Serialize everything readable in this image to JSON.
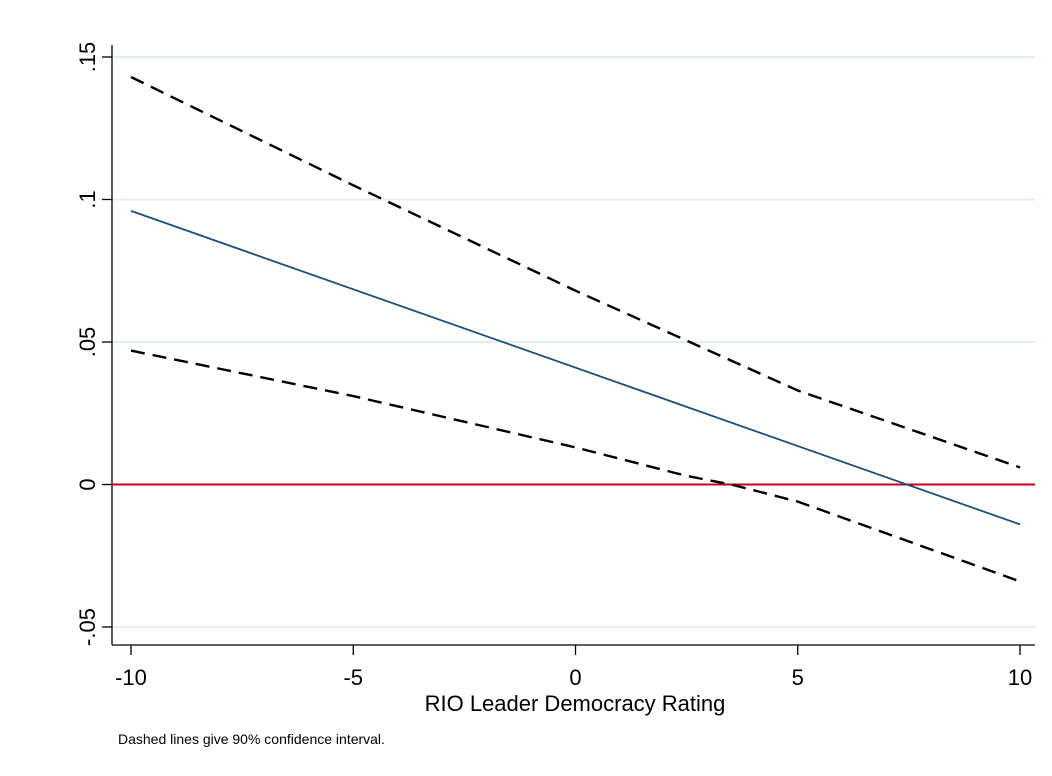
{
  "chart_data": {
    "type": "line",
    "xlabel": "RIO Leader Democracy Rating",
    "ylabel": "",
    "title": "",
    "note": "Dashed lines give 90% confidence interval.",
    "xlim": [
      -10,
      10
    ],
    "ylim": [
      -0.05,
      0.15
    ],
    "x_ticks": [
      -10,
      -5,
      0,
      5,
      10
    ],
    "x_tick_labels": [
      "-10",
      "-5",
      "0",
      "5",
      "10"
    ],
    "y_ticks": [
      -0.05,
      0,
      0.05,
      0.1,
      0.15
    ],
    "y_tick_labels": [
      "-.05",
      "0",
      ".05",
      ".1",
      ".15"
    ],
    "grid": true,
    "reference_line": {
      "y": 0,
      "color": "#c00020"
    },
    "colors": {
      "estimate": "#1f4e79",
      "ci": "#000000",
      "reference": "#c00020",
      "grid": "#e4eef0"
    },
    "series": [
      {
        "style": "dashed",
        "color": "#000000",
        "x": [
          -10,
          -5,
          0,
          5,
          10
        ],
        "y": [
          0.143,
          0.105,
          0.068,
          0.033,
          0.006
        ]
      },
      {
        "style": "solid",
        "color": "#1f4e79",
        "x": [
          -10,
          10
        ],
        "y": [
          0.096,
          -0.014
        ]
      },
      {
        "style": "dashed",
        "color": "#000000",
        "x": [
          -10,
          -5,
          0,
          2.5,
          3.5,
          5,
          10
        ],
        "y": [
          0.047,
          0.031,
          0.013,
          0.003,
          0.0,
          -0.006,
          -0.034
        ]
      }
    ]
  }
}
